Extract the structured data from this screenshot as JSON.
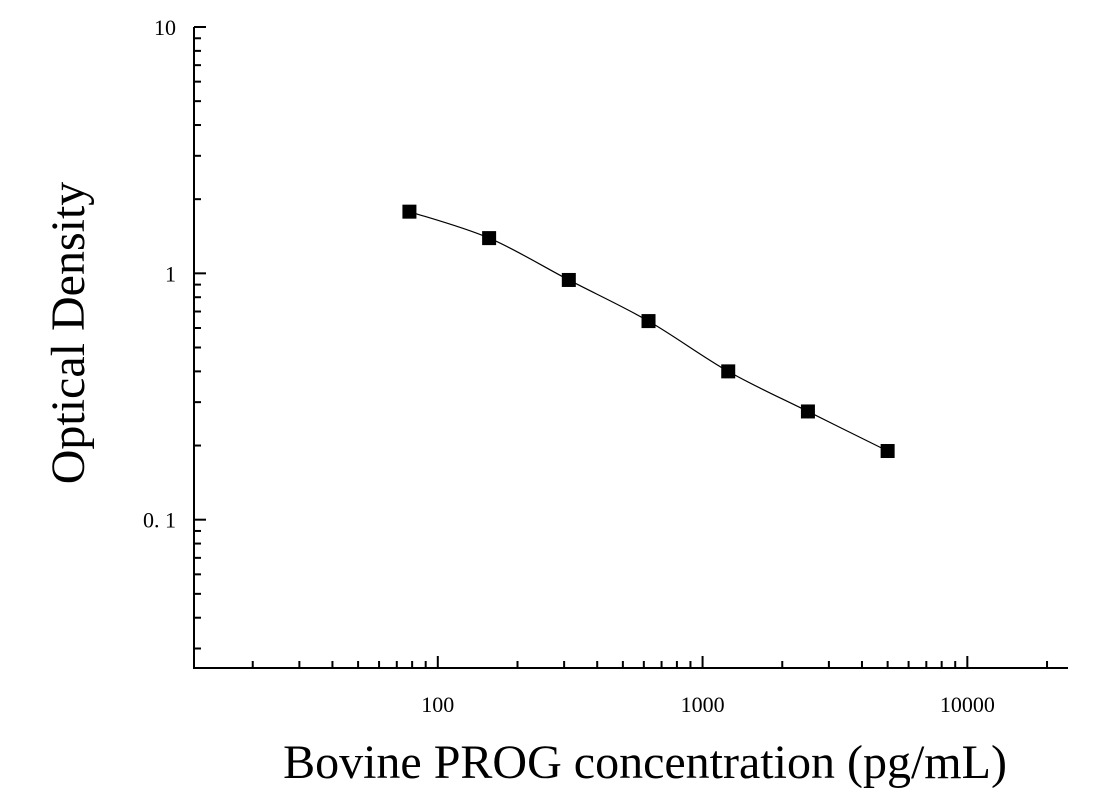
{
  "chart_data": {
    "type": "scatter",
    "title": "",
    "xlabel": "Bovine PROG concentration (pg/mL)",
    "ylabel": "Optical Density",
    "x_scale": "log",
    "y_scale": "log",
    "xlim": [
      12,
      24000
    ],
    "ylim": [
      0.025,
      10
    ],
    "x_ticks": [
      100,
      1000,
      10000
    ],
    "x_tick_labels": [
      "100",
      "1000",
      "10000"
    ],
    "y_ticks": [
      0.1,
      1,
      10
    ],
    "y_tick_labels": [
      "0. 1",
      "1",
      "10"
    ],
    "grid": false,
    "legend": "none",
    "series": [
      {
        "marker": "square",
        "fit_line": true,
        "x": [
          78.13,
          156.25,
          312.5,
          625,
          1250,
          2500,
          5000
        ],
        "y": [
          1.78,
          1.39,
          0.94,
          0.64,
          0.4,
          0.275,
          0.19
        ]
      }
    ],
    "colors": {
      "marker": "#000000",
      "line": "#000000",
      "axis": "#000000"
    }
  }
}
